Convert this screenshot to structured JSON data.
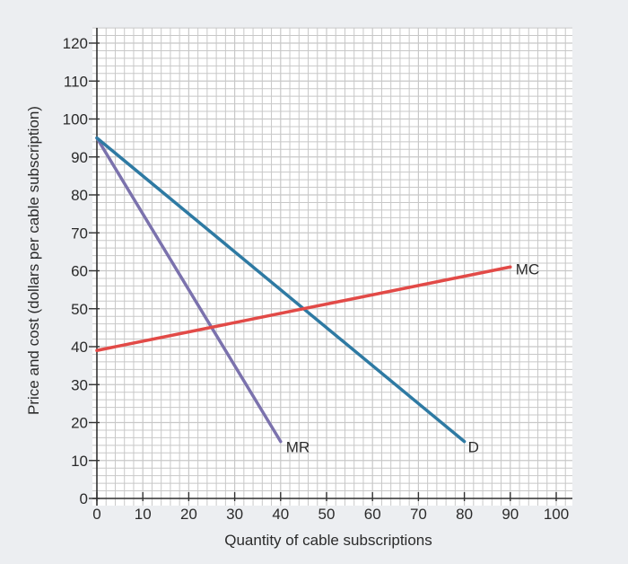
{
  "chart_data": {
    "type": "line",
    "title": "",
    "xlabel": "Quantity of cable subscriptions",
    "ylabel": "Price and cost (dollars per cable subscription)",
    "xlim": [
      0,
      100
    ],
    "ylim": [
      0,
      125
    ],
    "x_ticks": [
      0,
      10,
      20,
      30,
      40,
      50,
      60,
      70,
      80,
      90,
      100
    ],
    "y_ticks": [
      0,
      10,
      20,
      30,
      40,
      50,
      60,
      70,
      80,
      90,
      100,
      110,
      120
    ],
    "x_tick_labels": [
      "0",
      "10",
      "20",
      "30",
      "40",
      "50",
      "60",
      "70",
      "80",
      "90",
      "100"
    ],
    "y_tick_labels": [
      "0",
      "10",
      "20",
      "30",
      "40",
      "50",
      "60",
      "70",
      "80",
      "90",
      "100",
      "110",
      "120"
    ],
    "grid": true,
    "series": [
      {
        "name": "MR",
        "label": "MR",
        "color": "#7b72ad",
        "x": [
          0,
          40
        ],
        "y": [
          95,
          15
        ],
        "label_at": [
          40,
          15
        ]
      },
      {
        "name": "D",
        "label": "D",
        "color": "#2e7aa3",
        "x": [
          0,
          80
        ],
        "y": [
          95,
          15
        ],
        "label_at": [
          80,
          15
        ]
      },
      {
        "name": "MC",
        "label": "MC",
        "color": "#e24a47",
        "x": [
          0,
          90
        ],
        "y": [
          39,
          61
        ],
        "label_at": [
          90,
          61
        ]
      }
    ]
  },
  "colors": {
    "background": "#eceef1",
    "plot_background": "#ffffff",
    "grid": "#c8c8c8",
    "axis": "#333333"
  }
}
